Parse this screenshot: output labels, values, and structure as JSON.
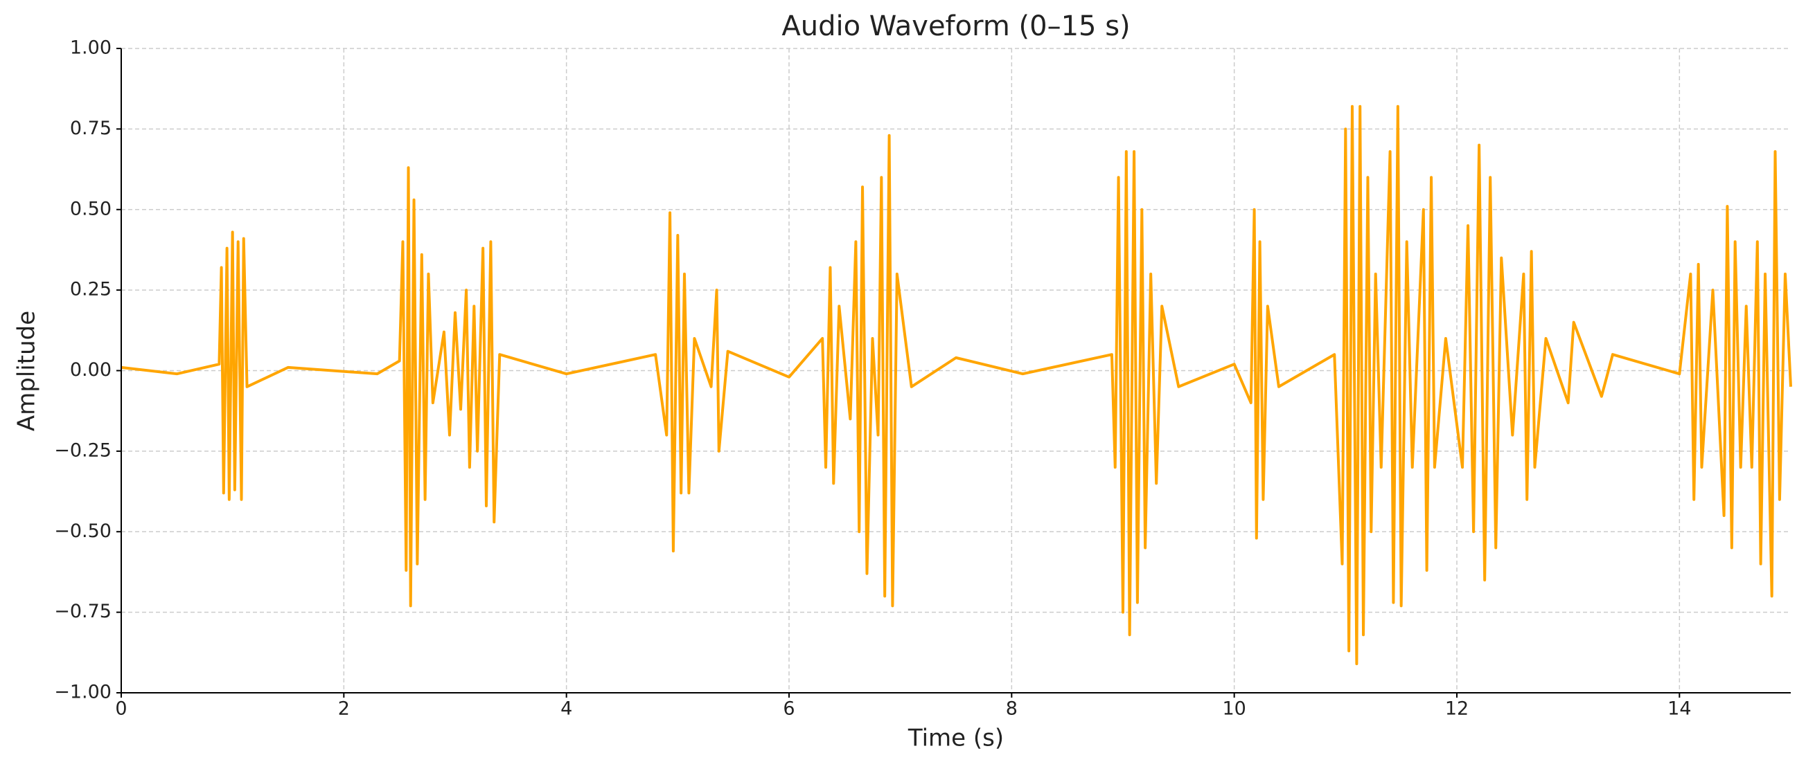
{
  "chart_data": {
    "type": "line",
    "title": "Audio Waveform (0–15 s)",
    "x_label": "Time (s)",
    "y_label": "Amplitude",
    "color": "#ffa500",
    "grid": true,
    "xlim": [
      0,
      15
    ],
    "xticks": [
      0,
      2,
      4,
      6,
      8,
      10,
      12,
      14
    ],
    "ylim": [
      -1,
      1
    ],
    "yticks": [
      {
        "value": -1,
        "label": "−1.00"
      },
      {
        "value": -0.75,
        "label": "−0.75"
      },
      {
        "value": -0.5,
        "label": "−0.50"
      },
      {
        "value": -0.25,
        "label": "−0.25"
      },
      {
        "value": 0,
        "label": "0.00"
      },
      {
        "value": 0.25,
        "label": "0.25"
      },
      {
        "value": 0.5,
        "label": "0.50"
      },
      {
        "value": 0.75,
        "label": "0.75"
      },
      {
        "value": 1,
        "label": "1.00"
      }
    ],
    "x": [
      0,
      0.5,
      0.88,
      0.9,
      0.92,
      0.95,
      0.97,
      1.0,
      1.02,
      1.05,
      1.08,
      1.1,
      1.13,
      1.5,
      2.3,
      2.5,
      2.53,
      2.56,
      2.58,
      2.6,
      2.63,
      2.66,
      2.7,
      2.73,
      2.76,
      2.8,
      2.9,
      2.95,
      3.0,
      3.05,
      3.1,
      3.13,
      3.17,
      3.2,
      3.25,
      3.28,
      3.32,
      3.35,
      3.4,
      4.0,
      4.8,
      4.9,
      4.93,
      4.96,
      5.0,
      5.03,
      5.06,
      5.1,
      5.15,
      5.3,
      5.35,
      5.37,
      5.45,
      6.0,
      6.3,
      6.33,
      6.37,
      6.4,
      6.45,
      6.55,
      6.6,
      6.63,
      6.66,
      6.7,
      6.75,
      6.8,
      6.83,
      6.86,
      6.9,
      6.93,
      6.97,
      7.1,
      7.5,
      8.1,
      8.9,
      8.93,
      8.96,
      9.0,
      9.03,
      9.06,
      9.1,
      9.13,
      9.17,
      9.2,
      9.25,
      9.3,
      9.35,
      9.5,
      10.0,
      10.15,
      10.18,
      10.2,
      10.23,
      10.26,
      10.3,
      10.4,
      10.9,
      10.97,
      11.0,
      11.03,
      11.06,
      11.1,
      11.13,
      11.16,
      11.2,
      11.23,
      11.27,
      11.32,
      11.4,
      11.43,
      11.47,
      11.5,
      11.55,
      11.6,
      11.7,
      11.73,
      11.77,
      11.8,
      11.9,
      12.05,
      12.1,
      12.15,
      12.2,
      12.25,
      12.3,
      12.35,
      12.4,
      12.5,
      12.6,
      12.63,
      12.67,
      12.7,
      12.8,
      13.0,
      13.05,
      13.3,
      13.4,
      14.0,
      14.1,
      14.13,
      14.17,
      14.2,
      14.3,
      14.4,
      14.43,
      14.47,
      14.5,
      14.55,
      14.6,
      14.65,
      14.7,
      14.73,
      14.77,
      14.83,
      14.86,
      14.9,
      14.95,
      15.0
    ],
    "values": [
      0.01,
      -0.01,
      0.02,
      0.32,
      -0.38,
      0.38,
      -0.4,
      0.43,
      -0.37,
      0.4,
      -0.4,
      0.41,
      -0.05,
      0.01,
      -0.01,
      0.03,
      0.4,
      -0.62,
      0.63,
      -0.73,
      0.53,
      -0.6,
      0.36,
      -0.4,
      0.3,
      -0.1,
      0.12,
      -0.2,
      0.18,
      -0.12,
      0.25,
      -0.3,
      0.2,
      -0.25,
      0.38,
      -0.42,
      0.4,
      -0.47,
      0.05,
      -0.01,
      0.05,
      -0.2,
      0.49,
      -0.56,
      0.42,
      -0.38,
      0.3,
      -0.38,
      0.1,
      -0.05,
      0.25,
      -0.25,
      0.06,
      -0.02,
      0.1,
      -0.3,
      0.32,
      -0.35,
      0.2,
      -0.15,
      0.4,
      -0.5,
      0.57,
      -0.63,
      0.1,
      -0.2,
      0.6,
      -0.7,
      0.73,
      -0.73,
      0.3,
      -0.05,
      0.04,
      -0.01,
      0.05,
      -0.3,
      0.6,
      -0.75,
      0.68,
      -0.82,
      0.68,
      -0.72,
      0.5,
      -0.55,
      0.3,
      -0.35,
      0.2,
      -0.05,
      0.02,
      -0.1,
      0.5,
      -0.52,
      0.4,
      -0.4,
      0.2,
      -0.05,
      0.05,
      -0.6,
      0.75,
      -0.87,
      0.82,
      -0.91,
      0.82,
      -0.82,
      0.6,
      -0.5,
      0.3,
      -0.3,
      0.68,
      -0.72,
      0.82,
      -0.73,
      0.4,
      -0.3,
      0.5,
      -0.62,
      0.6,
      -0.3,
      0.1,
      -0.3,
      0.45,
      -0.5,
      0.7,
      -0.65,
      0.6,
      -0.55,
      0.35,
      -0.2,
      0.3,
      -0.4,
      0.37,
      -0.3,
      0.1,
      -0.1,
      0.15,
      -0.08,
      0.05,
      -0.01,
      0.3,
      -0.4,
      0.33,
      -0.3,
      0.25,
      -0.45,
      0.51,
      -0.55,
      0.4,
      -0.3,
      0.2,
      -0.3,
      0.4,
      -0.6,
      0.3,
      -0.7,
      0.68,
      -0.4,
      0.3,
      -0.05
    ]
  }
}
